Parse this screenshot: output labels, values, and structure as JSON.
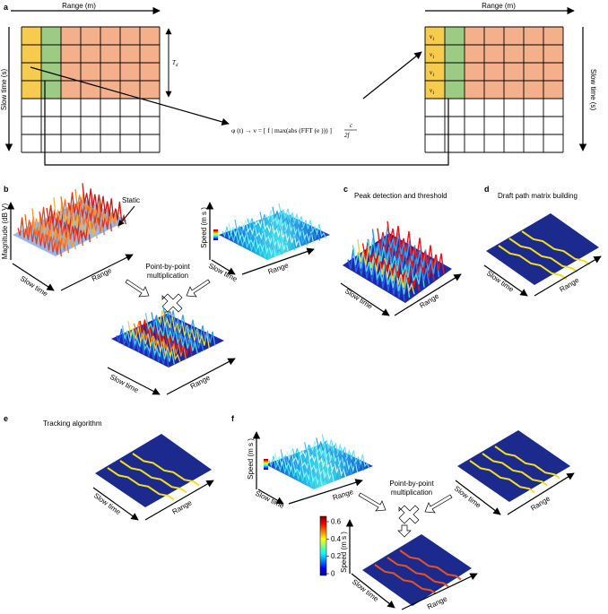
{
  "panels": {
    "a": "a",
    "b": "b",
    "c": "c",
    "d": "d",
    "e": "e",
    "f": "f"
  },
  "panel_a": {
    "range_label": "Range (m)",
    "slow_time_label": "Slow time (s)",
    "td_label": "T",
    "td_sub": "d",
    "v1_cells": [
      "ν",
      "ν",
      "ν",
      "ν"
    ],
    "v1_sub": "1",
    "equation": "φ (t) → ν = [ f | max(abs (FFT (e ))) ]",
    "equation_frac_num": "c",
    "equation_frac_den": "2f",
    "colors": {
      "yellow": "#F7CB4D",
      "green": "#9CCB84",
      "orange": "#F4B08A"
    }
  },
  "panel_b": {
    "magnitude_axis": "Magnitude (dB V)",
    "static_label": "Static",
    "speed_axis": "Speed (m s )",
    "speed_exp": "−1",
    "multiplication": [
      "Point-by-point",
      "multiplication"
    ],
    "slow_time": "Slow time",
    "range": "Range"
  },
  "panel_c": {
    "title": "Peak detection and threshold",
    "slow_time": "Slow time",
    "range": "Range"
  },
  "panel_d": {
    "title": "Draft path matrix building",
    "slow_time": "Slow time",
    "range": "Range"
  },
  "panel_e": {
    "title": "Tracking algorithm",
    "slow_time": "Slow time",
    "range": "Range"
  },
  "panel_f": {
    "speed_axis": "Speed (m s )",
    "speed_exp": "−1",
    "multiplication": [
      "Point-by-point",
      "multiplication"
    ],
    "slow_time": "Slow time",
    "range": "Range",
    "colorbar_ticks": [
      "0.6",
      "0.4",
      "0.2",
      "0"
    ],
    "colorbar_label": "Speed (m s )"
  }
}
